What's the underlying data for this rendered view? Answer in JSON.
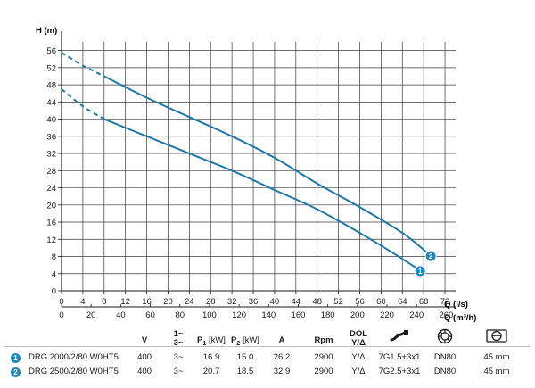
{
  "chart_data": {
    "type": "line",
    "ylabel": "H (m)",
    "xlabel": "Q (l/s)",
    "xlabel2": "Q (m³/h)",
    "xlim": [
      0,
      74
    ],
    "ylim": [
      0,
      58
    ],
    "xticks": [
      0,
      4,
      8,
      12,
      16,
      20,
      24,
      28,
      32,
      36,
      40,
      44,
      48,
      52,
      56,
      60,
      64,
      68,
      72
    ],
    "yticks": [
      0,
      4,
      8,
      12,
      16,
      20,
      24,
      28,
      32,
      36,
      40,
      44,
      48,
      52,
      56
    ],
    "x2ticks": [
      0,
      20,
      40,
      60,
      80,
      100,
      120,
      140,
      160,
      180,
      200,
      220,
      240,
      260
    ],
    "grid": true,
    "color": "#1f78a8",
    "marker_color": "#1e88c5",
    "series": [
      {
        "marker": "1",
        "dashed": [
          [
            0,
            47
          ],
          [
            4,
            43
          ],
          [
            8,
            40
          ]
        ],
        "solid": [
          [
            8,
            40
          ],
          [
            16,
            36
          ],
          [
            24,
            32
          ],
          [
            32,
            28
          ],
          [
            40,
            23.5
          ],
          [
            48,
            19
          ],
          [
            56,
            13.5
          ],
          [
            62,
            9
          ],
          [
            67,
            5
          ]
        ]
      },
      {
        "marker": "2",
        "dashed": [
          [
            0,
            55.5
          ],
          [
            4,
            52.5
          ],
          [
            8,
            50
          ]
        ],
        "solid": [
          [
            8,
            50
          ],
          [
            16,
            45
          ],
          [
            24,
            40.5
          ],
          [
            32,
            36
          ],
          [
            40,
            31
          ],
          [
            48,
            25
          ],
          [
            56,
            19.5
          ],
          [
            64,
            13.5
          ],
          [
            69,
            8.5
          ]
        ]
      }
    ]
  },
  "table": {
    "headers": {
      "v": "V",
      "phase": "1~\n3~",
      "p1": "P",
      "p1_sub": "1",
      "p1_unit": "[kW]",
      "p2": "P",
      "p2_sub": "2",
      "p2_unit": "[kW]",
      "a": "A",
      "rpm": "Rpm",
      "dol": "DOL\nY/Δ",
      "cable_icon": "cable-icon",
      "flange_icon": "pump-flange-icon",
      "diameter_icon": "impeller-passage-icon"
    },
    "rows": [
      {
        "num": "1",
        "model": "DRG 2000/2/80 W0HT5",
        "v": "400",
        "phase": "3~",
        "p1": "16.9",
        "p2": "15.0",
        "a": "26.2",
        "rpm": "2900",
        "dol": "Y/Δ",
        "cable": "7G1.5+3x1",
        "dn": "DN80",
        "size": "45 mm"
      },
      {
        "num": "2",
        "model": "DRG 2500/2/80 W0HT5",
        "v": "400",
        "phase": "3~",
        "p1": "20.7",
        "p2": "18.5",
        "a": "32.9",
        "rpm": "2900",
        "dol": "Y/Δ",
        "cable": "7G2.5+3x1",
        "dn": "DN80",
        "size": "45 mm"
      }
    ]
  }
}
